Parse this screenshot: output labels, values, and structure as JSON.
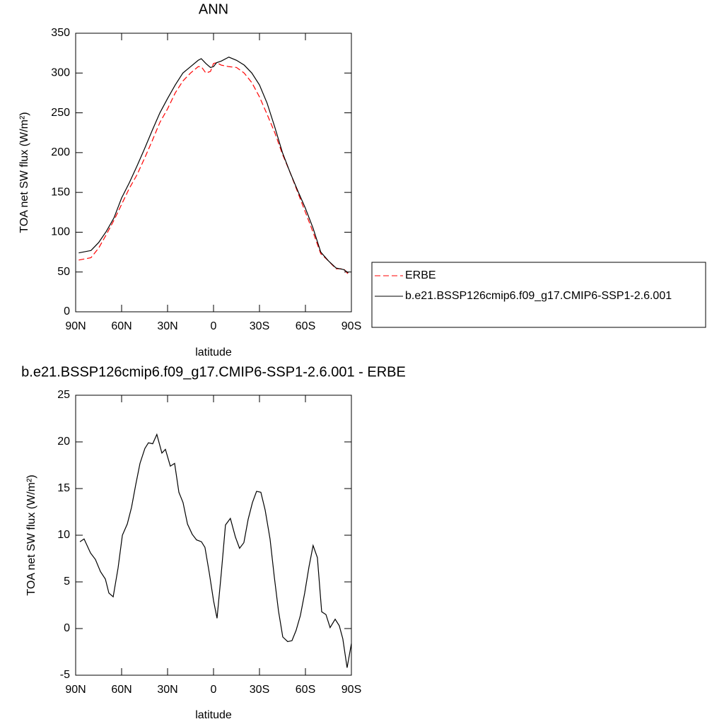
{
  "chart_data": [
    {
      "type": "line",
      "title": "ANN",
      "xlabel": "latitude",
      "ylabel": "TOA net SW flux (W/m²)",
      "xlim": [
        90,
        -90
      ],
      "xticks": [
        {
          "value": 90,
          "label": "90N"
        },
        {
          "value": 60,
          "label": "60N"
        },
        {
          "value": 30,
          "label": "30N"
        },
        0,
        {
          "value": -30,
          "label": "30S"
        },
        {
          "value": -60,
          "label": "60S"
        },
        {
          "value": -90,
          "label": "90S"
        }
      ],
      "ylim": [
        0,
        350
      ],
      "yticks": [
        0,
        50,
        100,
        150,
        200,
        250,
        300,
        350
      ],
      "legend": "right",
      "x": [
        88,
        80,
        75,
        70,
        65,
        60,
        55,
        50,
        45,
        40,
        35,
        30,
        25,
        20,
        15,
        10,
        8,
        5,
        2,
        0,
        -2,
        -5,
        -10,
        -15,
        -20,
        -25,
        -30,
        -35,
        -40,
        -45,
        -50,
        -55,
        -60,
        -65,
        -70,
        -75,
        -80,
        -85,
        -88
      ],
      "series": [
        {
          "name": "ERBE",
          "color": "#ff0000",
          "linestyle": "dashed",
          "values": [
            65,
            68,
            80,
            97,
            115,
            135,
            155,
            172,
            193,
            215,
            238,
            255,
            275,
            290,
            300,
            308,
            308,
            300,
            302,
            312,
            313,
            310,
            308,
            307,
            300,
            288,
            270,
            248,
            225,
            198,
            175,
            150,
            125,
            100,
            73,
            64,
            54,
            54,
            47
          ]
        },
        {
          "name": "b.e21.BSSP126cmip6.f09_g17.CMIP6-SSP1-2.6.001",
          "color": "#000000",
          "linestyle": "solid",
          "values": [
            74,
            77,
            87,
            101,
            118,
            143,
            162,
            183,
            205,
            228,
            250,
            268,
            285,
            300,
            308,
            316,
            318,
            312,
            307,
            308,
            313,
            315,
            320,
            316,
            310,
            300,
            285,
            262,
            232,
            200,
            175,
            152,
            130,
            105,
            75,
            64,
            55,
            53,
            49
          ]
        }
      ]
    },
    {
      "type": "line",
      "title": "b.e21.BSSP126cmip6.f09_g17.CMIP6-SSP1-2.6.001 - ERBE",
      "xlabel": "latitude",
      "ylabel": "TOA net SW flux (W/m²)",
      "xlim": [
        90,
        -90
      ],
      "xticks": [
        {
          "value": 90,
          "label": "90N"
        },
        {
          "value": 60,
          "label": "60N"
        },
        {
          "value": 30,
          "label": "30N"
        },
        0,
        {
          "value": -30,
          "label": "30S"
        },
        {
          "value": -60,
          "label": "60S"
        },
        {
          "value": -90,
          "label": "90S"
        }
      ],
      "ylim": [
        -5,
        25
      ],
      "yticks": [
        -5,
        0,
        5,
        10,
        15,
        20,
        25
      ],
      "color": "#000000",
      "x": [
        87.2,
        84.5,
        80.3,
        77.1,
        73.8,
        70.6,
        68.3,
        65.5,
        62.3,
        59.5,
        56.3,
        53.5,
        50.8,
        48,
        44.8,
        42.5,
        39.7,
        37,
        33.7,
        31.4,
        28.2,
        25.4,
        22.6,
        19.9,
        17,
        13.9,
        11.1,
        7.9,
        5.6,
        2.8,
        0,
        -2.3,
        -5.1,
        -7.8,
        -11,
        -14.3,
        -17,
        -19.8,
        -22.6,
        -25.4,
        -28.1,
        -30.9,
        -33.7,
        -36.9,
        -39.7,
        -42.4,
        -45.2,
        -48.4,
        -51.2,
        -53.9,
        -56.7,
        -59.5,
        -62.3,
        -65,
        -67.8,
        -70.6,
        -73.4,
        -76.1,
        -79.4,
        -82.1,
        -84.4,
        -87.2,
        -90
      ],
      "values": [
        9.3,
        9.6,
        8.1,
        7.4,
        6.1,
        5.3,
        3.8,
        3.4,
        6.5,
        10,
        11.2,
        13,
        15.4,
        17.7,
        19.3,
        19.9,
        19.8,
        20.8,
        18.8,
        19.2,
        17.4,
        17.7,
        14.6,
        13.5,
        11.2,
        10.1,
        9.5,
        9.3,
        8.7,
        6,
        3,
        1.1,
        6,
        11.1,
        11.8,
        9.8,
        8.6,
        9.2,
        11.7,
        13.5,
        14.7,
        14.6,
        12.7,
        9.6,
        5.5,
        1.9,
        -0.9,
        -1.4,
        -1.3,
        -0.2,
        1.4,
        3.8,
        6.6,
        8.9,
        7.6,
        1.8,
        1.5,
        0.1,
        1,
        0.3,
        -1.1,
        -4.2,
        -1.6
      ]
    }
  ]
}
